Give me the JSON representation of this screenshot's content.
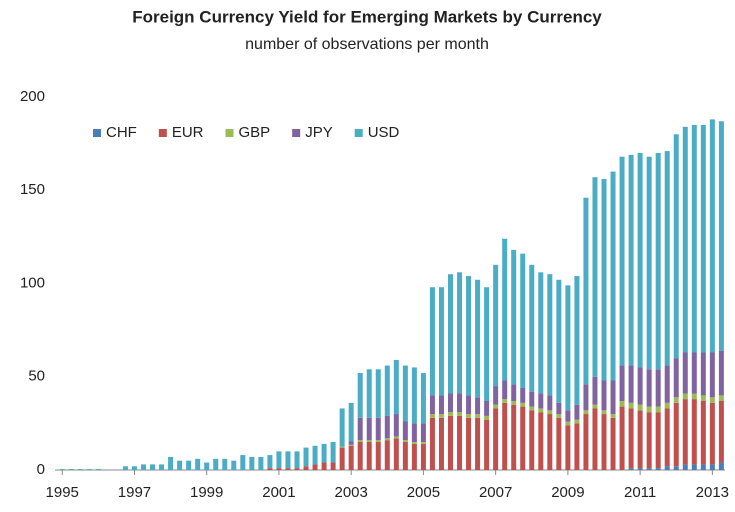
{
  "chart_data": {
    "type": "stacked_bar",
    "title": "Foreign Currency Yield for Emerging Markets by Currency",
    "subtitle": "number of observations per month",
    "x": [
      1995,
      1995.25,
      1995.5,
      1995.75,
      1996,
      1996.25,
      1996.5,
      1996.75,
      1997,
      1997.25,
      1997.5,
      1997.75,
      1998,
      1998.25,
      1998.5,
      1998.75,
      1999,
      1999.25,
      1999.5,
      1999.75,
      2000,
      2000.25,
      2000.5,
      2000.75,
      2001,
      2001.25,
      2001.5,
      2001.75,
      2002,
      2002.25,
      2002.5,
      2002.75,
      2003,
      2003.25,
      2003.5,
      2003.75,
      2004,
      2004.25,
      2004.5,
      2004.75,
      2005,
      2005.25,
      2005.5,
      2005.75,
      2006,
      2006.25,
      2006.5,
      2006.75,
      2007,
      2007.25,
      2007.5,
      2007.75,
      2008,
      2008.25,
      2008.5,
      2008.75,
      2009,
      2009.25,
      2009.5,
      2009.75,
      2010,
      2010.25,
      2010.5,
      2010.75,
      2011,
      2011.25,
      2011.5,
      2011.75,
      2012,
      2012.25,
      2012.5,
      2012.75,
      2013,
      2013.25
    ],
    "series": [
      {
        "name": "CHF",
        "color": "#4a7ebb",
        "values": [
          0,
          0,
          0,
          0,
          0,
          0,
          0,
          0,
          0,
          0,
          0,
          0,
          0,
          0,
          0,
          0,
          0,
          0,
          0,
          0,
          0,
          0,
          0,
          0,
          0,
          0,
          0,
          0,
          0,
          0,
          0,
          0,
          0,
          0,
          0,
          0,
          0,
          0,
          0,
          0,
          0,
          0,
          0,
          0,
          0,
          0,
          0,
          0,
          0,
          0,
          0,
          0,
          0,
          0,
          0,
          0,
          0,
          0,
          0,
          0,
          0,
          0,
          0,
          1,
          1,
          1,
          1,
          2,
          2,
          3,
          3,
          3,
          3,
          4
        ]
      },
      {
        "name": "EUR",
        "color": "#c0504d",
        "values": [
          0,
          0,
          0,
          0,
          0,
          0,
          0,
          0,
          0,
          0,
          0,
          0,
          0,
          0,
          0,
          0,
          0,
          0,
          0,
          0,
          0,
          0,
          0,
          1,
          1,
          1,
          1,
          2,
          3,
          4,
          4,
          12,
          13,
          15,
          15,
          15,
          16,
          17,
          15,
          14,
          14,
          28,
          28,
          29,
          29,
          28,
          28,
          27,
          33,
          36,
          35,
          34,
          32,
          31,
          30,
          28,
          24,
          25,
          30,
          33,
          30,
          28,
          34,
          32,
          31,
          30,
          30,
          31,
          34,
          35,
          35,
          34,
          33,
          33
        ]
      },
      {
        "name": "GBP",
        "color": "#9bbb59",
        "values": [
          0,
          0,
          0,
          0,
          0,
          0,
          0,
          0,
          0,
          0,
          0,
          0,
          0,
          0,
          0,
          0,
          0,
          0,
          0,
          0,
          0,
          0,
          0,
          0,
          0,
          0,
          0,
          0,
          0,
          0,
          0,
          0.5,
          0.5,
          1,
          1,
          1,
          1,
          1,
          1,
          1,
          1,
          2,
          2,
          2,
          2,
          2,
          2,
          2,
          2,
          2,
          2,
          2,
          2,
          2,
          2,
          2,
          2,
          2,
          2,
          2,
          2,
          2,
          3,
          3,
          3,
          3,
          3,
          3,
          3,
          3,
          3,
          3,
          3,
          3
        ]
      },
      {
        "name": "JPY",
        "color": "#8064a2",
        "values": [
          0,
          0,
          0,
          0,
          0,
          0,
          0,
          0,
          0,
          0,
          0,
          0,
          0,
          0,
          0,
          0,
          0,
          0,
          0,
          0,
          0,
          0,
          0,
          0,
          0,
          0,
          0,
          0,
          0,
          0,
          0,
          0,
          2,
          12,
          12,
          12,
          12,
          12,
          10,
          10,
          10,
          10,
          10,
          10,
          10,
          10,
          9,
          8,
          10,
          10,
          9,
          8,
          8,
          8,
          8,
          6,
          6,
          8,
          14,
          15,
          16,
          18,
          19,
          20,
          20,
          20,
          20,
          20,
          21,
          22,
          22,
          23,
          24,
          24
        ]
      },
      {
        "name": "USD",
        "color": "#4bacc6",
        "values": [
          0.5,
          0.5,
          0.5,
          0.5,
          0.5,
          0,
          0,
          2,
          2,
          3,
          3,
          3,
          7,
          5,
          5,
          6,
          4,
          6,
          6,
          5,
          8,
          7,
          7,
          7,
          9,
          9,
          9,
          10,
          10,
          10,
          11,
          20.5,
          20.5,
          24,
          26,
          26,
          27,
          29,
          30,
          30,
          27,
          58,
          58,
          64,
          65,
          64,
          63,
          61,
          65,
          76,
          72,
          72,
          68,
          65,
          65,
          66,
          67,
          69,
          100,
          107,
          108,
          112,
          112,
          113,
          115,
          114,
          116,
          115,
          120,
          121,
          122,
          122,
          125,
          123
        ]
      }
    ],
    "xlim": [
      1994.8,
      2013.35
    ],
    "xticks": [
      1995,
      1997,
      1999,
      2001,
      2003,
      2005,
      2007,
      2009,
      2011,
      2013
    ],
    "ylim": [
      0,
      200
    ],
    "yticks": [
      0,
      50,
      100,
      150,
      200
    ],
    "grid": false,
    "legend": "top-left"
  }
}
